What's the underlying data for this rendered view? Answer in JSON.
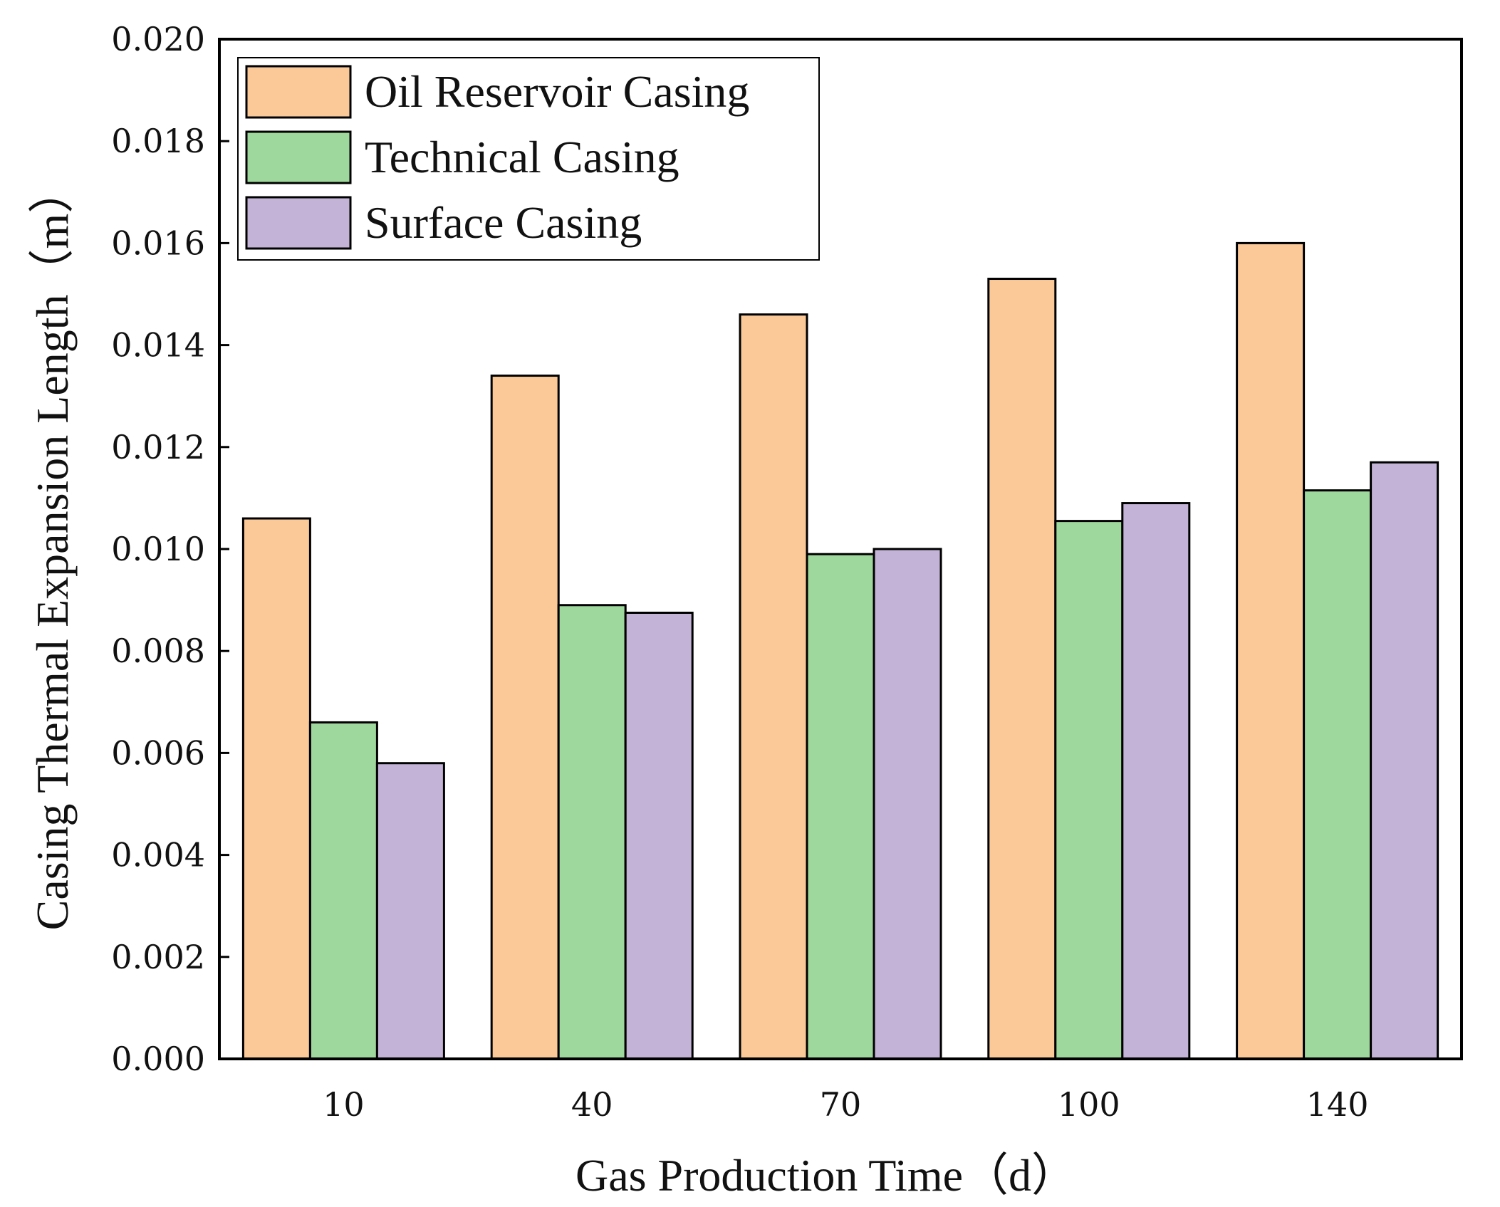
{
  "chart_data": {
    "type": "bar",
    "title": "",
    "xlabel": "Gas Production Time（d）",
    "ylabel": "Casing Thermal Expansion Length（m）",
    "categories": [
      "10",
      "40",
      "70",
      "100",
      "140"
    ],
    "ylim": [
      0,
      0.02
    ],
    "yticks": [
      "0.000",
      "0.002",
      "0.004",
      "0.006",
      "0.008",
      "0.010",
      "0.012",
      "0.014",
      "0.016",
      "0.018",
      "0.020"
    ],
    "ytick_values": [
      0,
      0.002,
      0.004,
      0.006,
      0.008,
      0.01,
      0.012,
      0.014,
      0.016,
      0.018,
      0.02
    ],
    "grid": false,
    "legend_position": "top-left",
    "series": [
      {
        "name": "Oil Reservoir Casing",
        "color": "#FBC897",
        "values": [
          0.0106,
          0.0134,
          0.0146,
          0.0153,
          0.016
        ]
      },
      {
        "name": "Technical Casing",
        "color": "#9FD89C",
        "values": [
          0.0066,
          0.0089,
          0.0099,
          0.01055,
          0.01115
        ]
      },
      {
        "name": "Surface Casing",
        "color": "#C3B3D7",
        "values": [
          0.0058,
          0.00875,
          0.01,
          0.0109,
          0.0117
        ]
      }
    ]
  }
}
